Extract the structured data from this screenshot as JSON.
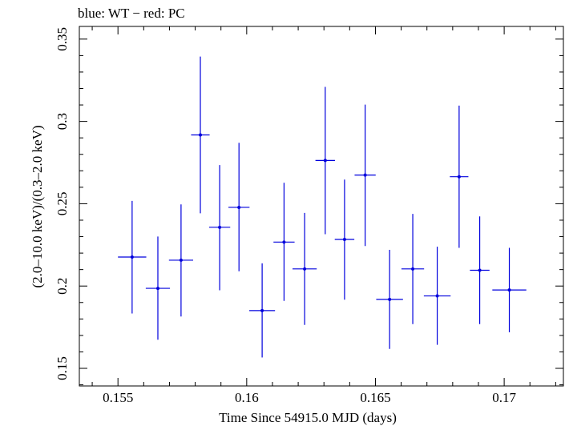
{
  "chart_data": {
    "type": "scatter",
    "title": "blue: WT − red: PC",
    "xlabel": "Time Since 54915.0 MJD (days)",
    "ylabel": "(2.0–10.0 keV)/(0.3–2.0 keV)",
    "xlim": [
      0.1535,
      0.1723
    ],
    "ylim": [
      0.1393,
      0.3577
    ],
    "x_ticks": [
      0.155,
      0.16,
      0.165,
      0.17
    ],
    "x_tick_labels": [
      "0.155",
      "0.16",
      "0.165",
      "0.17"
    ],
    "y_ticks": [
      0.15,
      0.2,
      0.25,
      0.3,
      0.35
    ],
    "y_tick_labels": [
      "0.15",
      "0.2",
      "0.25",
      "0.3",
      "0.35"
    ],
    "grid": false,
    "series": [
      {
        "color": "#0000dd",
        "points": [
          {
            "x": 0.15555,
            "y": 0.2176,
            "xerr": 0.00055,
            "ylo": 0.1833,
            "yhi": 0.2517
          },
          {
            "x": 0.15655,
            "y": 0.1986,
            "xerr": 0.00047,
            "ylo": 0.1674,
            "yhi": 0.2301
          },
          {
            "x": 0.15745,
            "y": 0.2157,
            "xerr": 0.00047,
            "ylo": 0.1815,
            "yhi": 0.2496
          },
          {
            "x": 0.1582,
            "y": 0.2918,
            "xerr": 0.00036,
            "ylo": 0.2442,
            "yhi": 0.3394
          },
          {
            "x": 0.15895,
            "y": 0.2357,
            "xerr": 0.00041,
            "ylo": 0.1974,
            "yhi": 0.2735
          },
          {
            "x": 0.1597,
            "y": 0.2478,
            "xerr": 0.00041,
            "ylo": 0.209,
            "yhi": 0.287
          },
          {
            "x": 0.1606,
            "y": 0.1851,
            "xerr": 0.0005,
            "ylo": 0.1566,
            "yhi": 0.2138
          },
          {
            "x": 0.16145,
            "y": 0.2267,
            "xerr": 0.00041,
            "ylo": 0.191,
            "yhi": 0.2627
          },
          {
            "x": 0.16225,
            "y": 0.2104,
            "xerr": 0.00047,
            "ylo": 0.1764,
            "yhi": 0.2444
          },
          {
            "x": 0.16305,
            "y": 0.2763,
            "xerr": 0.00038,
            "ylo": 0.2315,
            "yhi": 0.321
          },
          {
            "x": 0.1638,
            "y": 0.2283,
            "xerr": 0.00038,
            "ylo": 0.1917,
            "yhi": 0.2647
          },
          {
            "x": 0.1646,
            "y": 0.2674,
            "xerr": 0.00041,
            "ylo": 0.2243,
            "yhi": 0.3102
          },
          {
            "x": 0.16555,
            "y": 0.1919,
            "xerr": 0.00052,
            "ylo": 0.1618,
            "yhi": 0.222
          },
          {
            "x": 0.16645,
            "y": 0.2104,
            "xerr": 0.00044,
            "ylo": 0.1769,
            "yhi": 0.2438
          },
          {
            "x": 0.1674,
            "y": 0.194,
            "xerr": 0.00052,
            "ylo": 0.1643,
            "yhi": 0.2239
          },
          {
            "x": 0.16825,
            "y": 0.2664,
            "xerr": 0.00036,
            "ylo": 0.2232,
            "yhi": 0.3096
          },
          {
            "x": 0.16905,
            "y": 0.2096,
            "xerr": 0.00038,
            "ylo": 0.1769,
            "yhi": 0.2423
          },
          {
            "x": 0.1702,
            "y": 0.1976,
            "xerr": 0.00066,
            "ylo": 0.1719,
            "yhi": 0.2232
          }
        ]
      }
    ]
  }
}
